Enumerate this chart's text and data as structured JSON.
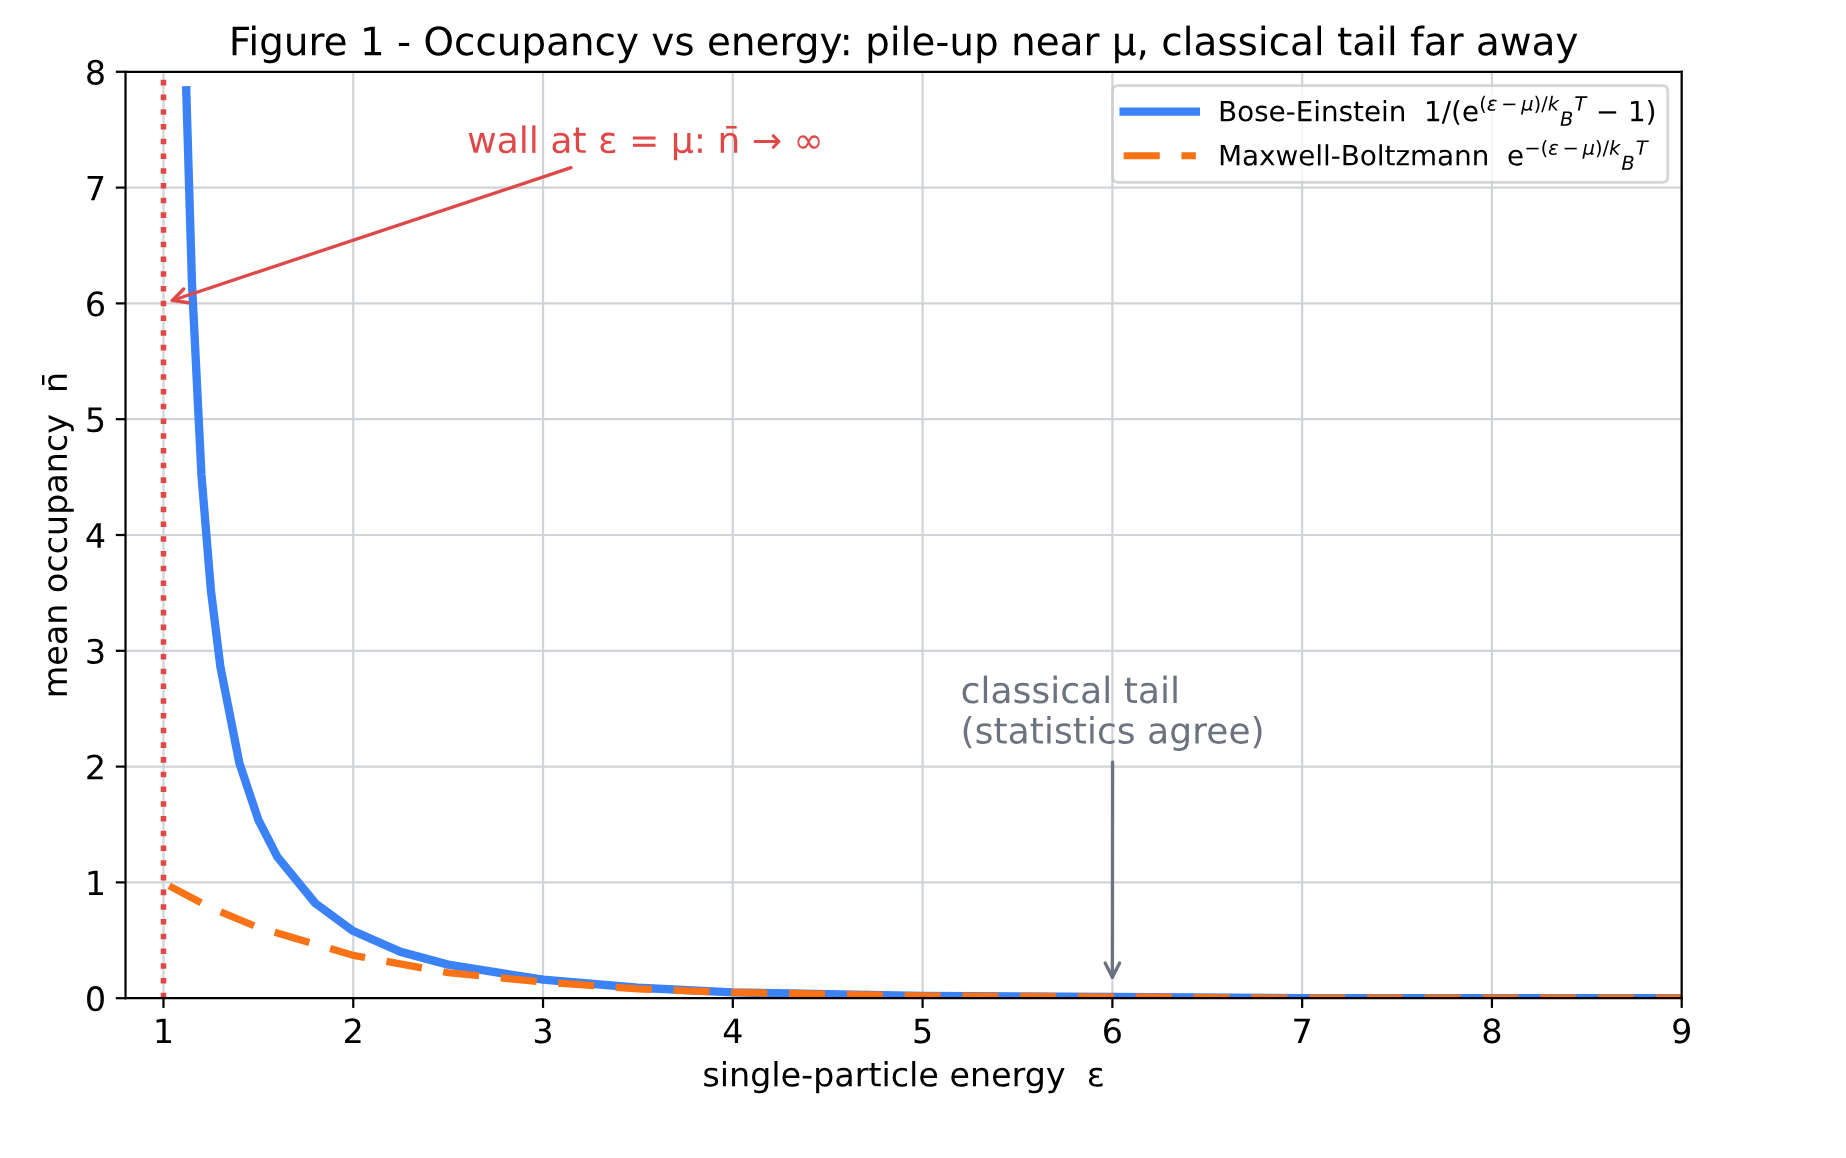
{
  "chart_data": {
    "type": "line",
    "title": "Figure 1 - Occupancy vs energy: pile-up near μ, classical tail far away",
    "xlabel": "single-particle energy  ε",
    "ylabel": "mean occupancy  n̄",
    "series": [
      {
        "name": "Bose-Einstein  1/(e$^{(ε−μ)/k}$$_{B}$$^{T}$ − 1)",
        "color": "#3b82f6",
        "line_style": "solid",
        "x": [
          1.12,
          1.15,
          1.2,
          1.25,
          1.3,
          1.4,
          1.5,
          1.6,
          1.8,
          2,
          2.25,
          2.5,
          3,
          3.5,
          4,
          5,
          6,
          7,
          8,
          9
        ],
        "values": [
          7.84,
          6.18,
          4.52,
          3.52,
          2.86,
          2.03,
          1.54,
          1.22,
          0.82,
          0.58,
          0.4,
          0.29,
          0.16,
          0.09,
          0.05,
          0.02,
          0.01,
          0,
          0,
          0
        ]
      },
      {
        "name": "Maxwell-Boltzmann  e$^{−(ε−μ)/k}$$_{B}$$^{T}$",
        "color": "#f97316",
        "line_style": "dashed",
        "x": [
          1.03,
          1.25,
          1.5,
          2,
          2.5,
          3,
          3.5,
          4,
          5,
          6,
          7,
          8,
          9
        ],
        "values": [
          0.97,
          0.78,
          0.61,
          0.37,
          0.22,
          0.14,
          0.08,
          0.05,
          0.02,
          0.01,
          0,
          0,
          0
        ]
      }
    ],
    "ref_lines": [
      {
        "axis": "x",
        "value": 1,
        "label": null,
        "color": "#e04848",
        "line_style": "dotted"
      }
    ],
    "annotations": [
      {
        "text": "wall at ε = μ: n̄ → ∞",
        "x": 1,
        "y": 6
      },
      {
        "text": "classical tail\n(statistics agree)",
        "x": 6,
        "y": 0.1
      }
    ],
    "xlim": [
      0.8,
      9
    ],
    "ylim": [
      0,
      8
    ],
    "xticks": [
      1,
      2,
      3,
      4,
      5,
      6,
      7,
      8,
      9
    ],
    "yticks": [
      0,
      1,
      2,
      3,
      4,
      5,
      6,
      7,
      8
    ],
    "grid": true,
    "legend": "top right"
  }
}
